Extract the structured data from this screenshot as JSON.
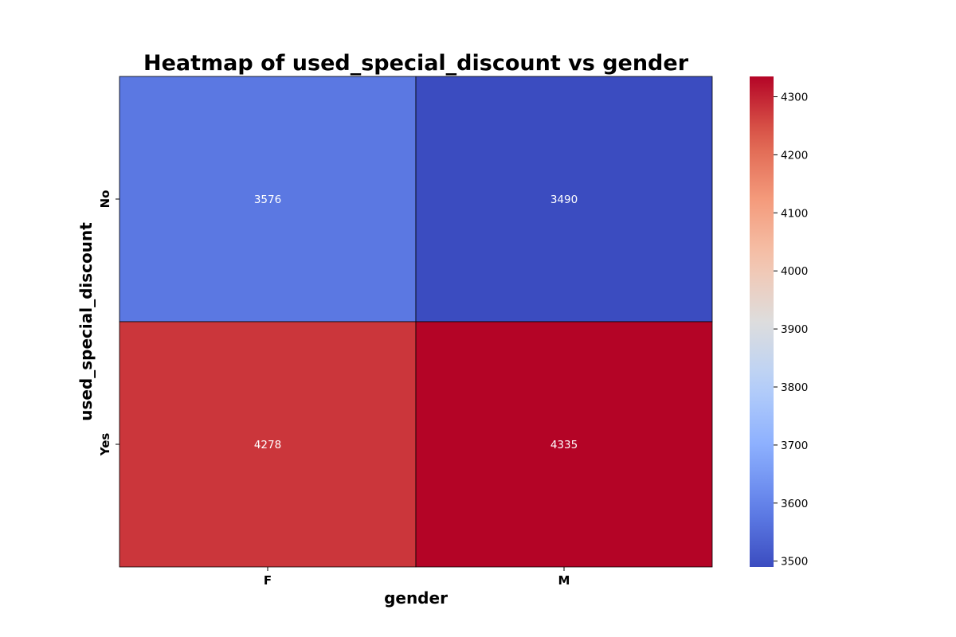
{
  "chart_data": {
    "type": "heatmap",
    "title": "Heatmap of used_special_discount vs gender",
    "xlabel": "gender",
    "ylabel": "used_special_discount",
    "x_categories": [
      "F",
      "M"
    ],
    "y_categories": [
      "No",
      "Yes"
    ],
    "values": [
      [
        3576,
        3490
      ],
      [
        4278,
        4335
      ]
    ],
    "colormap": "coolwarm",
    "colorbar": {
      "vmin": 3490,
      "vmax": 4335,
      "ticks": [
        3500,
        3600,
        3700,
        3800,
        3900,
        4000,
        4100,
        4200,
        4300
      ]
    },
    "annotations": true,
    "grid_line_color": "#000000"
  }
}
